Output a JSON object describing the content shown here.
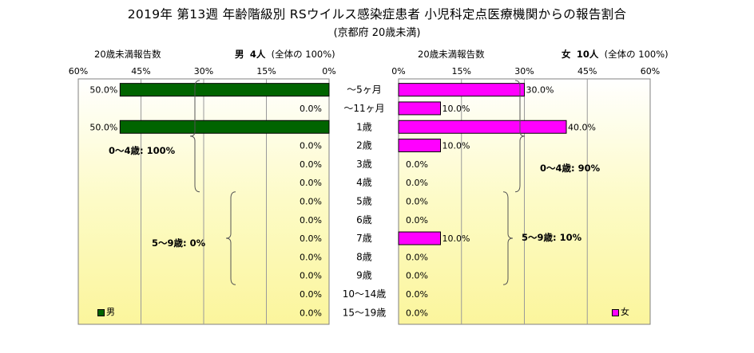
{
  "title": "2019年 第13週 年齢階級別 RSウイルス感染症患者 小児科定点医療機関からの報告割合",
  "subtitle": "(京都府 20歳未満)",
  "male_panel": {
    "count_label": "20歳未満報告数",
    "gender": "男",
    "count": "4人",
    "share": "(全体の  100%)",
    "legend": "男",
    "color": "#006400",
    "group_notes": [
      {
        "label": "0～4歳: 100%",
        "from_row": 0,
        "to_row": 5
      },
      {
        "label": "5～9歳: 0%",
        "from_row": 6,
        "to_row": 10
      }
    ]
  },
  "female_panel": {
    "count_label": "20歳未満報告数",
    "gender": "女",
    "count": "10人",
    "share": "(全体の  100%)",
    "legend": "女",
    "color": "#ff00ff",
    "group_notes": [
      {
        "label": "0～4歳: 90%",
        "from_row": 0,
        "to_row": 5
      },
      {
        "label": "5～9歳: 10%",
        "from_row": 6,
        "to_row": 10
      }
    ]
  },
  "chart_data": {
    "type": "bar",
    "orientation": "horizontal",
    "layout": "population-pyramid",
    "categories": [
      "～5ヶ月",
      "～11ヶ月",
      "1歳",
      "2歳",
      "3歳",
      "4歳",
      "5歳",
      "6歳",
      "7歳",
      "8歳",
      "9歳",
      "10～14歳",
      "15～19歳"
    ],
    "series": [
      {
        "name": "男",
        "values": [
          50.0,
          0.0,
          50.0,
          0.0,
          0.0,
          0.0,
          0.0,
          0.0,
          0.0,
          0.0,
          0.0,
          0.0,
          0.0
        ],
        "labels": [
          "50.0%",
          "0.0%",
          "50.0%",
          "0.0%",
          "0.0%",
          "0.0%",
          "0.0%",
          "0.0%",
          "0.0%",
          "0.0%",
          "0.0%",
          "0.0%",
          "0.0%"
        ]
      },
      {
        "name": "女",
        "values": [
          30.0,
          10.0,
          40.0,
          10.0,
          0.0,
          0.0,
          0.0,
          0.0,
          10.0,
          0.0,
          0.0,
          0.0,
          0.0
        ],
        "labels": [
          "30.0%",
          "10.0%",
          "40.0%",
          "10.0%",
          "0.0%",
          "0.0%",
          "0.0%",
          "0.0%",
          "10.0%",
          "0.0%",
          "0.0%",
          "0.0%",
          "0.0%"
        ]
      }
    ],
    "xlim": [
      0,
      60
    ],
    "ticks": [
      "0%",
      "15%",
      "30%",
      "45%",
      "60%"
    ],
    "grid": true,
    "legend_position": "bottom-corner"
  }
}
